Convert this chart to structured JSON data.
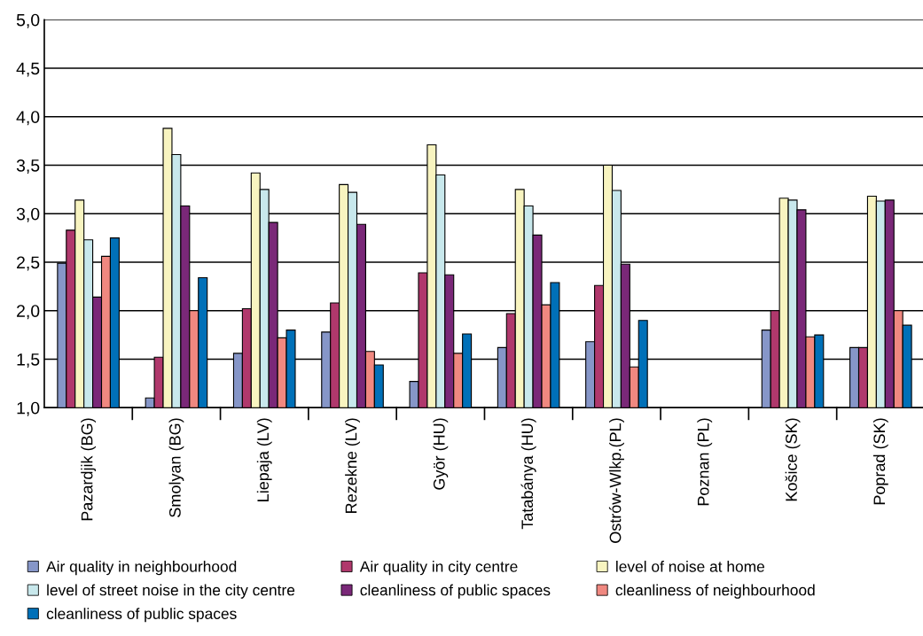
{
  "chart_data": {
    "type": "bar",
    "categories": [
      "Pazardjik (BG)",
      "Smolyan (BG)",
      "Liepaja (LV)",
      "Rezekne (LV)",
      "Györ (HU)",
      "Tatabánya (HU)",
      "Ostrów-Wlkp.(PL)",
      "Poznan (PL)",
      "Košice (SK)",
      "Poprad (SK)"
    ],
    "series": [
      {
        "name": "Air quality in neighbourhood",
        "color": "#8696c8",
        "values": [
          2.49,
          1.1,
          1.56,
          1.78,
          1.27,
          1.62,
          1.68,
          null,
          1.8,
          1.62
        ]
      },
      {
        "name": "Air quality in city centre",
        "color": "#b0386c",
        "values": [
          2.83,
          1.52,
          2.02,
          2.08,
          2.39,
          1.97,
          2.26,
          null,
          2.0,
          1.62
        ]
      },
      {
        "name": "level of noise at home",
        "color": "#f8f4c0",
        "values": [
          3.14,
          3.88,
          3.42,
          3.3,
          3.71,
          3.25,
          3.5,
          null,
          3.16,
          3.18
        ]
      },
      {
        "name": "level of street noise in the city centre",
        "color": "#c8e8ec",
        "values": [
          2.73,
          3.61,
          3.25,
          3.22,
          3.4,
          3.08,
          3.24,
          null,
          3.14,
          3.13
        ]
      },
      {
        "name": "cleanliness of public spaces",
        "color": "#7a2878",
        "values": [
          2.14,
          3.08,
          2.91,
          2.89,
          2.37,
          2.78,
          2.48,
          null,
          3.04,
          3.14
        ]
      },
      {
        "name": "cleanliness of neighbourhood",
        "color": "#f08880",
        "values": [
          2.56,
          2.0,
          1.72,
          1.58,
          1.56,
          2.06,
          1.42,
          null,
          1.73,
          2.0
        ]
      },
      {
        "name": "cleanliness of public spaces",
        "color": "#0070b8",
        "values": [
          2.75,
          2.34,
          1.8,
          1.44,
          1.76,
          2.29,
          1.9,
          null,
          1.75,
          1.85
        ]
      }
    ],
    "ylim": [
      1.0,
      5.0
    ],
    "yticks": [
      {
        "value": 1.0,
        "label": "1,0"
      },
      {
        "value": 1.5,
        "label": "1,5"
      },
      {
        "value": 2.0,
        "label": "2,0"
      },
      {
        "value": 2.5,
        "label": "2,5"
      },
      {
        "value": 3.0,
        "label": "3,0"
      },
      {
        "value": 3.5,
        "label": "3,5"
      },
      {
        "value": 4.0,
        "label": "4,0"
      },
      {
        "value": 4.5,
        "label": "4,5"
      },
      {
        "value": 5.0,
        "label": "5,0"
      }
    ],
    "grid": "y",
    "legend": "bottom"
  }
}
